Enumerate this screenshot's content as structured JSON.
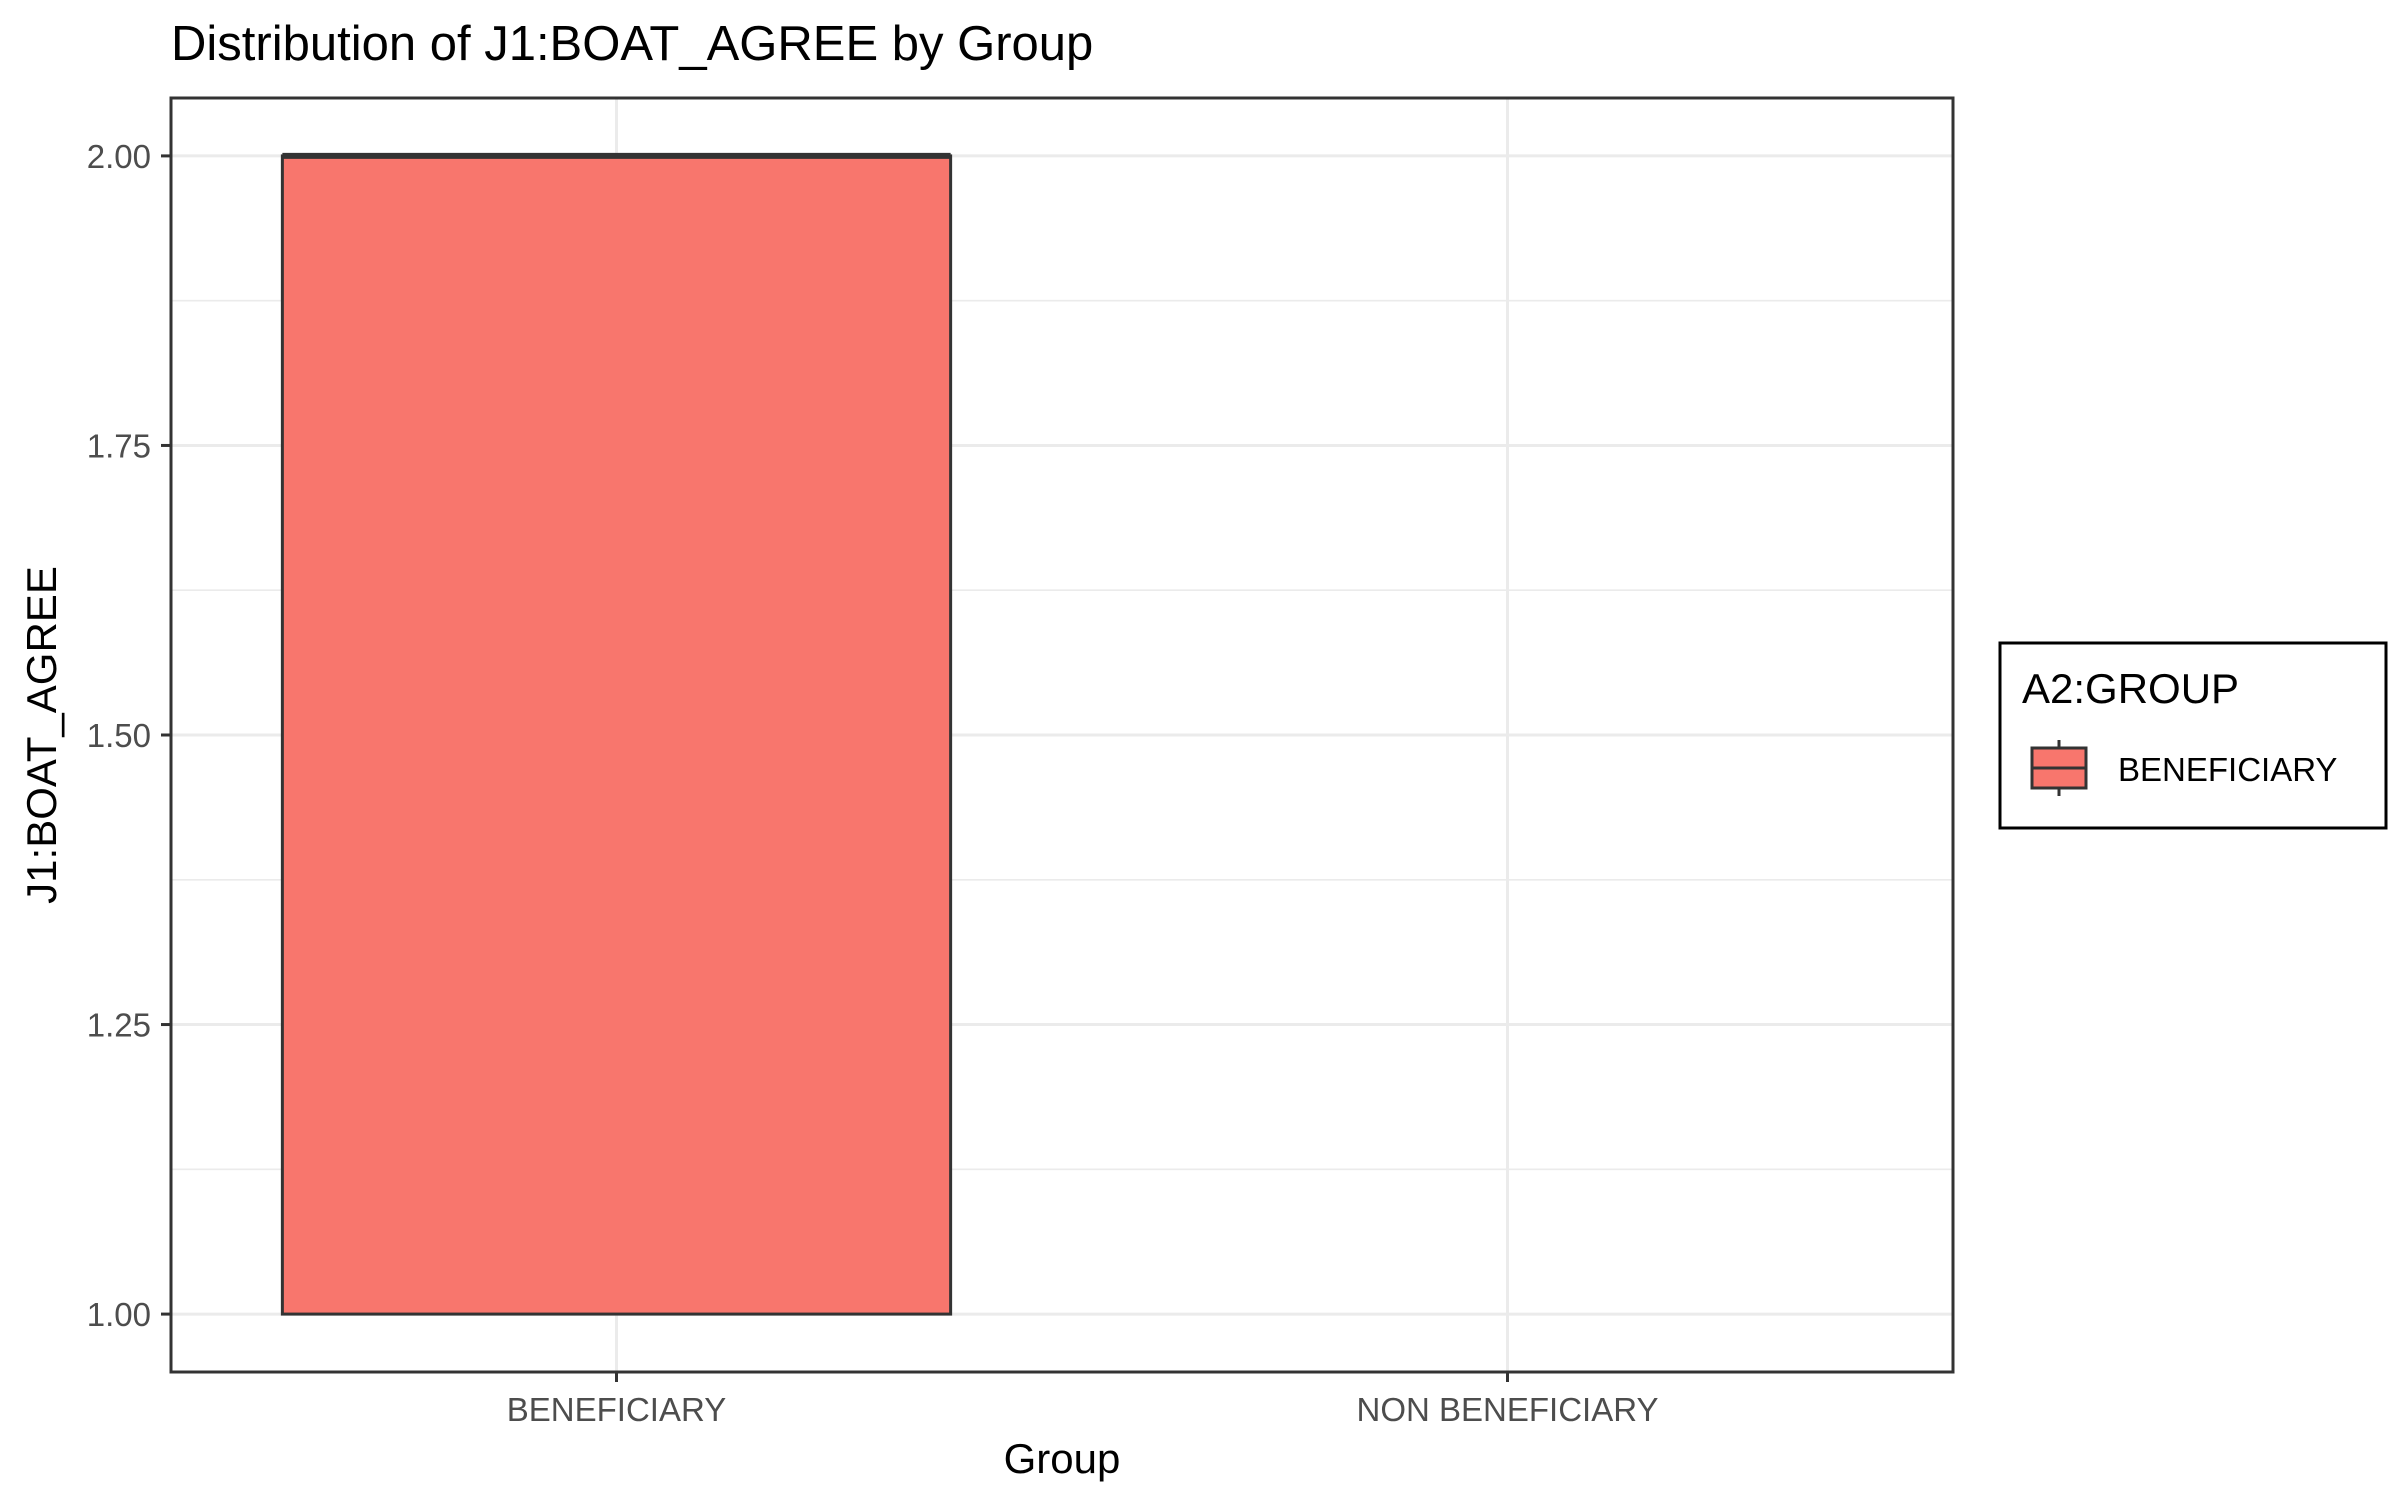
{
  "chart_data": {
    "type": "boxplot",
    "title": "Distribution of J1:BOAT_AGREE by Group",
    "xlabel": "Group",
    "ylabel": "J1:BOAT_AGREE",
    "categories": [
      "BENEFICIARY",
      "NON BENEFICIARY"
    ],
    "ylim": [
      0.95,
      2.05
    ],
    "yticks": [
      1.0,
      1.25,
      1.5,
      1.75,
      2.0
    ],
    "ytick_labels": [
      "1.00",
      "1.25",
      "1.50",
      "1.75",
      "2.00"
    ],
    "boxes": [
      {
        "category": "BENEFICIARY",
        "min": 1.0,
        "q1": 1.0,
        "median": 2.0,
        "q3": 2.0,
        "max": 2.0,
        "color": "#F8766D"
      }
    ],
    "grid": true,
    "legend": {
      "title": "A2:GROUP",
      "position": "right",
      "entries": [
        {
          "label": "BENEFICIARY",
          "color": "#F8766D"
        }
      ]
    }
  }
}
